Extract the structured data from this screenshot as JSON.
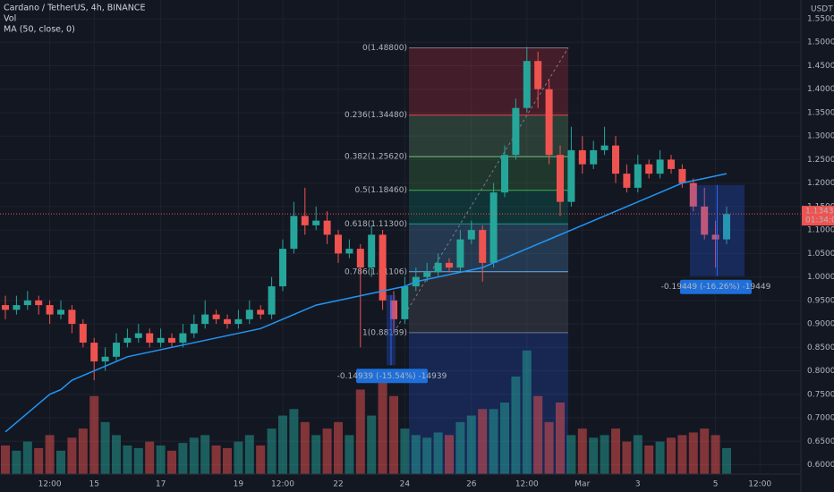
{
  "chart_data": {
    "type": "candlestick",
    "title": "Cardano / TetherUS, 4h, BINANCE",
    "indicators": [
      "Vol",
      "MA (50, close, 0)"
    ],
    "currency": "USDT",
    "up_color": "#26a69a",
    "down_color": "#ef5350",
    "ma_color": "#2196f3",
    "grid": true,
    "ylim": [
      0.58,
      1.59
    ],
    "volume_lim": [
      0,
      110
    ],
    "yticks": [
      {
        "value": 0.6,
        "label": "0.60000"
      },
      {
        "value": 0.65,
        "label": "0.65000"
      },
      {
        "value": 0.7,
        "label": "0.70000"
      },
      {
        "value": 0.75,
        "label": "0.75000"
      },
      {
        "value": 0.8,
        "label": "0.80000"
      },
      {
        "value": 0.85,
        "label": "0.85000"
      },
      {
        "value": 0.9,
        "label": "0.90000"
      },
      {
        "value": 0.95,
        "label": "0.95000"
      },
      {
        "value": 1.0,
        "label": "1.00000"
      },
      {
        "value": 1.05,
        "label": "1.05000"
      },
      {
        "value": 1.1,
        "label": "1.10000"
      },
      {
        "value": 1.15,
        "label": "1.15000"
      },
      {
        "value": 1.2,
        "label": "1.20000"
      },
      {
        "value": 1.25,
        "label": "1.25000"
      },
      {
        "value": 1.3,
        "label": "1.30000"
      },
      {
        "value": 1.35,
        "label": "1.35000"
      },
      {
        "value": 1.4,
        "label": "1.40000"
      },
      {
        "value": 1.45,
        "label": "1.45000"
      },
      {
        "value": 1.5,
        "label": "1.50000"
      },
      {
        "value": 1.55,
        "label": "1.55000"
      }
    ],
    "categories": [
      null,
      null,
      null,
      null,
      "12:00",
      null,
      null,
      null,
      "15",
      null,
      null,
      null,
      null,
      null,
      "17",
      null,
      null,
      null,
      null,
      null,
      null,
      "19",
      null,
      null,
      null,
      "12:00",
      null,
      null,
      null,
      null,
      "22",
      null,
      null,
      null,
      null,
      null,
      "24",
      null,
      null,
      null,
      null,
      null,
      "26",
      null,
      null,
      null,
      null,
      "12:00",
      null,
      null,
      null,
      null,
      "Mar",
      null,
      null,
      null,
      null,
      "3",
      null,
      null,
      null,
      null,
      null,
      null,
      "5",
      null,
      null,
      null,
      "12:00"
    ],
    "open": [
      0.94,
      0.93,
      0.94,
      0.95,
      0.94,
      0.92,
      0.93,
      0.9,
      0.86,
      0.82,
      0.83,
      0.86,
      0.87,
      0.88,
      0.86,
      0.87,
      0.86,
      0.88,
      0.9,
      0.92,
      0.91,
      0.9,
      0.91,
      0.93,
      0.92,
      0.98,
      1.06,
      1.13,
      1.11,
      1.12,
      1.09,
      1.05,
      1.06,
      1.02,
      1.09,
      0.95,
      0.91,
      0.98,
      1.0,
      1.01,
      1.03,
      1.02,
      1.08,
      1.1,
      1.03,
      1.18,
      1.26,
      1.36,
      1.46,
      1.4,
      1.26,
      1.16,
      1.27,
      1.24,
      1.27,
      1.28,
      1.22,
      1.19,
      1.24,
      1.22,
      1.25,
      1.23,
      1.2,
      1.15,
      1.09,
      1.08,
      null,
      null,
      null
    ],
    "high": [
      0.96,
      0.96,
      0.97,
      0.96,
      0.95,
      0.95,
      0.94,
      0.91,
      0.87,
      0.85,
      0.88,
      0.89,
      0.9,
      0.89,
      0.89,
      0.88,
      0.9,
      0.92,
      0.95,
      0.93,
      0.92,
      0.93,
      0.95,
      0.94,
      1.0,
      1.08,
      1.16,
      1.19,
      1.15,
      1.14,
      1.1,
      1.08,
      1.07,
      1.11,
      1.1,
      0.97,
      1.0,
      1.02,
      1.03,
      1.05,
      1.04,
      1.1,
      1.12,
      1.11,
      1.2,
      1.28,
      1.38,
      1.49,
      1.48,
      1.42,
      1.28,
      1.32,
      1.3,
      1.29,
      1.32,
      1.3,
      1.24,
      1.26,
      1.25,
      1.27,
      1.26,
      1.24,
      1.21,
      1.19,
      1.12,
      1.15,
      null,
      null,
      null
    ],
    "low": [
      0.91,
      0.92,
      0.93,
      0.92,
      0.9,
      0.91,
      0.88,
      0.85,
      0.78,
      0.8,
      0.82,
      0.85,
      0.86,
      0.85,
      0.85,
      0.85,
      0.85,
      0.87,
      0.89,
      0.9,
      0.89,
      0.89,
      0.9,
      0.91,
      0.91,
      0.97,
      1.05,
      1.09,
      1.1,
      1.07,
      1.03,
      1.04,
      0.85,
      1.0,
      0.93,
      0.88,
      0.9,
      0.97,
      0.99,
      1.0,
      1.01,
      1.01,
      1.07,
      0.99,
      1.02,
      1.17,
      1.25,
      1.35,
      1.36,
      1.24,
      1.13,
      1.15,
      1.22,
      1.23,
      1.26,
      1.2,
      1.18,
      1.18,
      1.21,
      1.21,
      1.22,
      1.19,
      1.14,
      1.08,
      1.02,
      1.07,
      null,
      null,
      null
    ],
    "close": [
      0.93,
      0.94,
      0.95,
      0.94,
      0.92,
      0.93,
      0.9,
      0.86,
      0.82,
      0.83,
      0.86,
      0.87,
      0.88,
      0.86,
      0.87,
      0.86,
      0.88,
      0.9,
      0.92,
      0.91,
      0.9,
      0.91,
      0.93,
      0.92,
      0.98,
      1.06,
      1.13,
      1.11,
      1.12,
      1.09,
      1.05,
      1.06,
      1.02,
      1.09,
      0.95,
      0.91,
      0.98,
      1.0,
      1.01,
      1.03,
      1.02,
      1.08,
      1.1,
      1.03,
      1.18,
      1.26,
      1.36,
      1.46,
      1.4,
      1.26,
      1.16,
      1.27,
      1.24,
      1.27,
      1.28,
      1.22,
      1.19,
      1.24,
      1.22,
      1.25,
      1.23,
      1.2,
      1.15,
      1.09,
      1.08,
      1.134,
      null,
      null,
      null
    ],
    "volume": [
      22,
      18,
      25,
      20,
      30,
      18,
      28,
      35,
      60,
      40,
      30,
      22,
      20,
      25,
      22,
      18,
      24,
      28,
      30,
      22,
      20,
      25,
      30,
      22,
      35,
      45,
      50,
      40,
      30,
      35,
      40,
      30,
      65,
      45,
      80,
      60,
      35,
      30,
      28,
      32,
      30,
      40,
      45,
      50,
      50,
      55,
      75,
      95,
      60,
      40,
      55,
      30,
      35,
      28,
      30,
      35,
      25,
      30,
      22,
      25,
      28,
      30,
      32,
      35,
      30,
      20,
      null,
      null,
      null
    ],
    "ma": [
      0.67,
      0.69,
      0.71,
      0.73,
      0.75,
      0.76,
      0.78,
      0.79,
      0.8,
      0.81,
      0.82,
      0.83,
      0.835,
      0.84,
      0.845,
      0.85,
      0.855,
      0.86,
      0.865,
      0.87,
      0.875,
      0.88,
      0.885,
      0.89,
      0.9,
      0.91,
      0.92,
      0.93,
      0.94,
      0.945,
      0.95,
      0.955,
      0.96,
      0.965,
      0.97,
      0.975,
      0.98,
      0.99,
      0.995,
      1.0,
      1.005,
      1.01,
      1.015,
      1.02,
      1.03,
      1.04,
      1.05,
      1.06,
      1.07,
      1.08,
      1.09,
      1.1,
      1.11,
      1.12,
      1.13,
      1.14,
      1.15,
      1.16,
      1.17,
      1.18,
      1.19,
      1.2,
      1.205,
      1.21,
      1.215,
      1.22,
      null,
      null,
      null
    ],
    "fib_levels": [
      {
        "value": 1.488,
        "label": "0(1.48800)",
        "color": "#787b86"
      },
      {
        "value": 1.3448,
        "label": "0.236(1.34480)",
        "color": "#f23645"
      },
      {
        "value": 1.2562,
        "label": "0.382(1.25620)",
        "color": "#81c784"
      },
      {
        "value": 1.1846,
        "label": "0.5(1.18460)",
        "color": "#4caf50"
      },
      {
        "value": 1.113,
        "label": "0.618(1.11300)",
        "color": "#089981"
      },
      {
        "value": 1.01106,
        "label": "0.786(1.01106)",
        "color": "#64b5f6"
      },
      {
        "value": 0.88139,
        "label": "1(0.88139)",
        "color": "#787b86"
      }
    ],
    "extension_color": "#2962ff",
    "measures": [
      {
        "from": 0.9613,
        "to": 0.8119,
        "label": "-0.14939 (-15.54%) -14939"
      },
      {
        "from": 1.1961,
        "to": 1.0017,
        "label": "-0.19449 (-16.26%) -19449"
      }
    ],
    "last_price": {
      "value": 1.13437,
      "label": "1.13437"
    },
    "countdown": "01:34:01"
  }
}
